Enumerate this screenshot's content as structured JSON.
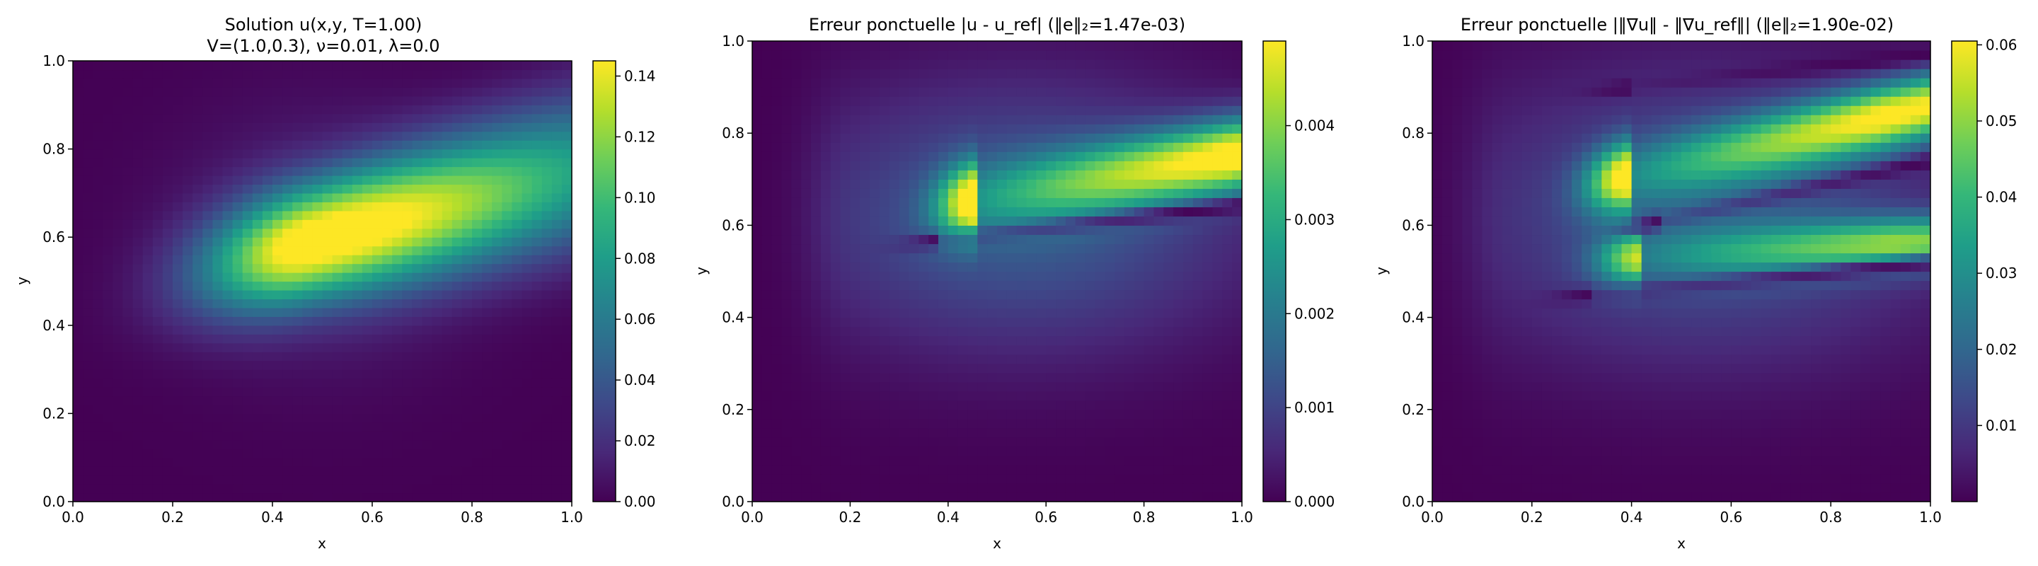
{
  "colors": {
    "colormap": "viridis",
    "viridis_stops": [
      "#440154",
      "#482878",
      "#3e4989",
      "#31688e",
      "#26828e",
      "#1f9e89",
      "#35b779",
      "#6ece58",
      "#b5de2b",
      "#fde725"
    ]
  },
  "chart_data": [
    {
      "type": "heatmap",
      "title_lines": [
        "Solution u(x,y, T=1.00)",
        "V=(1.0,0.3), ν=0.01, λ=0.0"
      ],
      "xlabel": "x",
      "ylabel": "y",
      "xlim": [
        0.0,
        1.0
      ],
      "ylim": [
        0.0,
        1.0
      ],
      "x_ticks": [
        "0.0",
        "0.2",
        "0.4",
        "0.6",
        "0.8",
        "1.0"
      ],
      "y_ticks": [
        "0.0",
        "0.2",
        "0.4",
        "0.6",
        "0.8",
        "1.0"
      ],
      "colorbar": {
        "range": [
          0.0,
          0.145
        ],
        "ticks": [
          {
            "value": 0.0,
            "label": "0.00"
          },
          {
            "value": 0.02,
            "label": "0.02"
          },
          {
            "value": 0.04,
            "label": "0.04"
          },
          {
            "value": 0.06,
            "label": "0.06"
          },
          {
            "value": 0.08,
            "label": "0.08"
          },
          {
            "value": 0.1,
            "label": "0.10"
          },
          {
            "value": 0.12,
            "label": "0.12"
          },
          {
            "value": 0.14,
            "label": "0.14"
          }
        ]
      },
      "grid_resolution": [
        50,
        50
      ],
      "field": "solution",
      "peak_value": 0.145,
      "peak_location": [
        0.48,
        0.59
      ]
    },
    {
      "type": "heatmap",
      "title_lines": [
        "Erreur ponctuelle |u - u_ref| (‖e‖₂=1.47e-03)"
      ],
      "xlabel": "x",
      "ylabel": "y",
      "xlim": [
        0.0,
        1.0
      ],
      "ylim": [
        0.0,
        1.0
      ],
      "x_ticks": [
        "0.0",
        "0.2",
        "0.4",
        "0.6",
        "0.8",
        "1.0"
      ],
      "y_ticks": [
        "0.0",
        "0.2",
        "0.4",
        "0.6",
        "0.8",
        "1.0"
      ],
      "colorbar": {
        "range": [
          0.0,
          0.0049
        ],
        "ticks": [
          {
            "value": 0.0,
            "label": "0.000"
          },
          {
            "value": 0.001,
            "label": "0.001"
          },
          {
            "value": 0.002,
            "label": "0.002"
          },
          {
            "value": 0.003,
            "label": "0.003"
          },
          {
            "value": 0.004,
            "label": "0.004"
          }
        ]
      },
      "grid_resolution": [
        50,
        50
      ],
      "field": "abs_error",
      "l2_norm": "1.47e-03",
      "peak_value": 0.0049
    },
    {
      "type": "heatmap",
      "title_lines": [
        "Erreur ponctuelle |‖∇u‖ - ‖∇u_ref‖| (‖e‖₂=1.90e-02)"
      ],
      "xlabel": "x",
      "ylabel": "y",
      "xlim": [
        0.0,
        1.0
      ],
      "ylim": [
        0.0,
        1.0
      ],
      "x_ticks": [
        "0.0",
        "0.2",
        "0.4",
        "0.6",
        "0.8",
        "1.0"
      ],
      "y_ticks": [
        "0.0",
        "0.2",
        "0.4",
        "0.6",
        "0.8",
        "1.0"
      ],
      "colorbar": {
        "range": [
          0.0,
          0.0605
        ],
        "ticks": [
          {
            "value": 0.01,
            "label": "0.01"
          },
          {
            "value": 0.02,
            "label": "0.02"
          },
          {
            "value": 0.03,
            "label": "0.03"
          },
          {
            "value": 0.04,
            "label": "0.04"
          },
          {
            "value": 0.05,
            "label": "0.05"
          },
          {
            "value": 0.06,
            "label": "0.06"
          }
        ]
      },
      "grid_resolution": [
        50,
        50
      ],
      "field": "grad_norm_error",
      "l2_norm": "1.90e-02",
      "peak_value": 0.0605
    }
  ]
}
